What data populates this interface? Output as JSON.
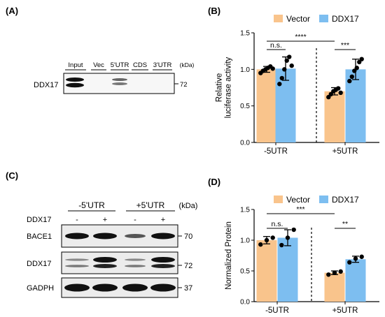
{
  "colors": {
    "vector": "#F9C48C",
    "ddx17": "#7DBEF0",
    "band": "#1a1a1a",
    "blot_bg": "#ffffff",
    "lane_bg": "#eeeeee"
  },
  "panel_a": {
    "label": "(A)",
    "lanes": [
      "Input",
      "Vec",
      "5'UTR",
      "CDS",
      "3'UTR"
    ],
    "unit": "(kDa)",
    "protein": "DDX17",
    "marker": "72"
  },
  "panel_c": {
    "label": "(C)",
    "group_labels": [
      "-5'UTR",
      "+5'UTR"
    ],
    "unit": "(kDa)",
    "row_label": "DDX17",
    "signs": [
      "-",
      "+",
      "-",
      "+"
    ],
    "blots": [
      {
        "name": "BACE1",
        "marker": "70"
      },
      {
        "name": "DDX17",
        "marker": "72"
      },
      {
        "name": "GADPH",
        "marker": "37"
      }
    ]
  },
  "chart_data": [
    {
      "type": "bar",
      "panel_label": "(B)",
      "categories": [
        "-5UTR",
        "+5UTR"
      ],
      "series": [
        {
          "name": "Vector",
          "values": [
            1.0,
            0.7
          ],
          "errors": [
            0.04,
            0.05
          ],
          "points": [
            [
              0.95,
              0.98,
              1.0,
              1.02,
              1.04,
              1.01
            ],
            [
              0.62,
              0.66,
              0.7,
              0.72,
              0.74,
              0.68
            ]
          ]
        },
        {
          "name": "DDX17",
          "values": [
            1.01,
            1.0
          ],
          "errors": [
            0.16,
            0.14
          ],
          "points": [
            [
              0.8,
              0.88,
              1.0,
              1.12,
              1.17,
              1.05
            ],
            [
              0.84,
              0.9,
              0.98,
              1.02,
              1.1,
              1.14
            ]
          ]
        }
      ],
      "ylabel": "Relative\nluciferase activity",
      "ylim": [
        0,
        1.5
      ],
      "yticks": [
        "0.0",
        "0.5",
        "1.0",
        "1.5"
      ],
      "significance": [
        "n.s.",
        "****",
        "***"
      ],
      "legend": "top"
    },
    {
      "type": "bar",
      "panel_label": "(D)",
      "categories": [
        "-5UTR",
        "+5UTR"
      ],
      "series": [
        {
          "name": "Vector",
          "values": [
            1.0,
            0.47
          ],
          "errors": [
            0.06,
            0.03
          ],
          "points": [
            [
              0.93,
              1.0,
              1.04
            ],
            [
              0.44,
              0.47,
              0.49
            ]
          ]
        },
        {
          "name": "DDX17",
          "values": [
            1.04,
            0.69
          ],
          "errors": [
            0.13,
            0.05
          ],
          "points": [
            [
              0.92,
              1.04,
              1.17
            ],
            [
              0.64,
              0.7,
              0.73
            ]
          ]
        }
      ],
      "ylabel": "Normalized Protein",
      "ylim": [
        0,
        1.5
      ],
      "yticks": [
        "0.0",
        "0.5",
        "1.0",
        "1.5"
      ],
      "significance": [
        "n.s.",
        "***",
        "**"
      ],
      "legend": "top"
    }
  ]
}
